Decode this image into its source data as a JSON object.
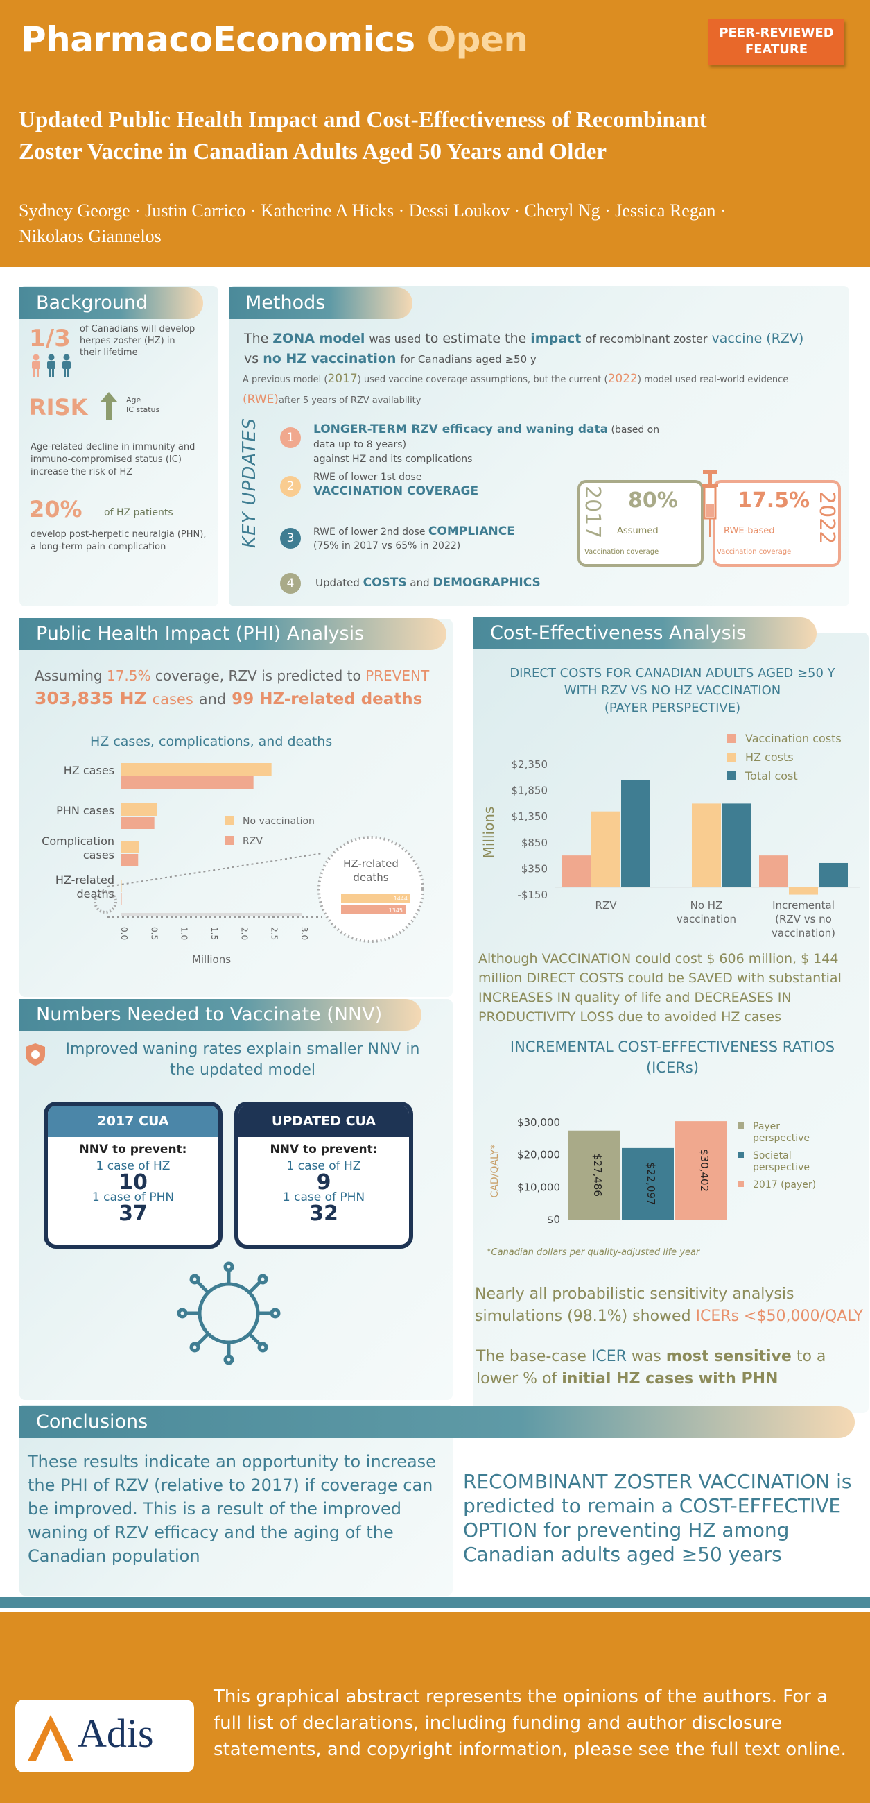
{
  "header": {
    "journal_main": "PharmacoEconomics",
    "journal_accent": "Open",
    "badge_line1": "PEER-REVIEWED",
    "badge_line2": "FEATURE",
    "title_line1": "Updated Public Health Impact and Cost-Effectiveness of Recombinant",
    "title_line2": "Zoster Vaccine in Canadian Adults Aged 50 Years and Older",
    "authors_line1": "Sydney George · Justin Carrico · Katherine A Hicks · Dessi Loukov · Cheryl Ng · Jessica Regan ·",
    "authors_line2": "Nikolaos Giannelos"
  },
  "background": {
    "heading": "Background",
    "fraction": "1/3",
    "fraction_text": "of Canadians will develop herpes zoster (HZ) in their lifetime",
    "risk": "RISK",
    "risk_label1": "Age",
    "risk_label2": "IC status",
    "decline_text": "Age-related decline in immunity and immuno-compromised status (IC) increase the risk of HZ",
    "percent": "20%",
    "percent_label": "of HZ patients",
    "phn_text": "develop post-herpetic neuralgia (PHN), a long-term pain complication"
  },
  "methods": {
    "heading": "Methods",
    "intro_1": "The",
    "intro_zona": "ZONA model",
    "intro_2": "was used",
    "intro_3": "to estimate the",
    "intro_impact": "impact",
    "intro_4": "of recombinant zoster",
    "intro_vaccine": "vaccine (RZV)",
    "intro_vs": "vs",
    "intro_nohz": "no HZ vaccination",
    "intro_5": "for Canadians aged ≥50 y",
    "prev_1": "A previous model (",
    "prev_2017": "2017",
    "prev_2": ") used vaccine coverage assumptions, but the current (",
    "prev_2022": "2022",
    "prev_3": ") model used real-world evidence",
    "prev_rwe": "(RWE)",
    "prev_4": "after 5 years of RZV availability",
    "key_updates": "KEY UPDATES",
    "updates": [
      {
        "num": "1",
        "bold": "LONGER-TERM RZV efficacy and waning data",
        "rest": " (based on data up to 8 years)",
        "line2": "against HZ and its complications"
      },
      {
        "num": "2",
        "pre": "RWE of lower 1st dose",
        "bold": "VACCINATION COVERAGE"
      },
      {
        "num": "3",
        "pre": "RWE of lower 2nd dose ",
        "bold": "COMPLIANCE",
        "line2": "(75% in 2017 vs 65% in 2022)"
      },
      {
        "num": "4",
        "pre": "Updated ",
        "bold": "COSTS",
        "mid": " and ",
        "bold2": "DEMOGRAPHICS"
      }
    ],
    "cov_2017_year": "2017",
    "cov_2017_value": "80%",
    "cov_2017_label": "Assumed",
    "cov_2017_sub": "Vaccination coverage",
    "cov_2022_year": "2022",
    "cov_2022_value": "17.5%",
    "cov_2022_label": "RWE-based",
    "cov_2022_sub": "Vaccination coverage"
  },
  "phi": {
    "heading": "Public Health  Impact (PHI) Analysis",
    "line1_a": "Assuming",
    "line1_b": "17.5%",
    "line1_c": "coverage, RZV is predicted to",
    "line1_d": "PREVENT",
    "line2_a": "303,835 HZ",
    "line2_b": "cases",
    "line2_c": "and",
    "line2_d": "99 HZ-related deaths",
    "chart_title": "HZ cases, complications, and deaths",
    "x_label": "Millions",
    "zoom_label_1": "HZ-related",
    "zoom_label_2": "deaths",
    "zoom_val_1": "1444",
    "zoom_val_2": "1345",
    "legend_no_vacc": "No vaccination",
    "legend_rzv": "RZV"
  },
  "chart_data": [
    {
      "type": "bar",
      "title": "HZ cases, complications, and deaths",
      "xlabel": "Millions",
      "categories": [
        "HZ cases",
        "PHN cases",
        "Complication cases",
        "HZ-related deaths"
      ],
      "series": [
        {
          "name": "No vaccination",
          "values": [
            2.5,
            0.6,
            0.3,
            0.0014
          ]
        },
        {
          "name": "RZV",
          "values": [
            2.2,
            0.55,
            0.28,
            0.0013
          ]
        }
      ],
      "xticks": [
        "0.0",
        "0.5",
        "1.0",
        "1.5",
        "2.0",
        "2.5",
        "3.0"
      ],
      "xlim": [
        0,
        3
      ]
    },
    {
      "type": "bar",
      "title": "DIRECT COSTS FOR CANADIAN ADULTS AGED ≥50 Y WITH RZV VS NO HZ VACCINATION (PAYER PERSPECTIVE)",
      "ylabel": "Millions",
      "categories": [
        "RZV",
        "No HZ vaccination",
        "Incremental (RZV vs no vaccination)"
      ],
      "series": [
        {
          "name": "Vaccination costs",
          "values": [
            606,
            0,
            606
          ]
        },
        {
          "name": "HZ costs",
          "values": [
            1450,
            1600,
            -144
          ]
        },
        {
          "name": "Total cost",
          "values": [
            2050,
            1600,
            462
          ]
        }
      ],
      "yticks": [
        "$2,350",
        "$1,850",
        "$1,350",
        "$850",
        "$350",
        "-$150"
      ],
      "ylim": [
        -150,
        2350
      ]
    },
    {
      "type": "bar",
      "title": "INCREMENTAL COST-EFFECTIVENESS RATIOS (ICERs)",
      "ylabel": "CAD/QALY*",
      "categories": [
        "Payer perspective",
        "Societal perspective",
        "2017 (payer)"
      ],
      "values": [
        27486,
        22097,
        30402
      ],
      "value_labels": [
        "$27,486",
        "$22,097",
        "$30,402"
      ],
      "yticks": [
        "$30,000",
        "$20,000",
        "$10,000",
        "$0"
      ],
      "ylim": [
        0,
        30000
      ]
    }
  ],
  "cea": {
    "heading": "Cost-Effectiveness Analysis",
    "chart_title_1": "DIRECT COSTS FOR CANADIAN ADULTS AGED ≥50 Y",
    "chart_title_2": "WITH RZV VS NO HZ VACCINATION",
    "chart_title_3": "(PAYER PERSPECTIVE)",
    "legend": [
      "Vaccination costs",
      "HZ costs",
      "Total cost"
    ],
    "ylabel": "Millions",
    "cat_1": "RZV",
    "cat_2a": "No HZ",
    "cat_2b": "vaccination",
    "cat_3a": "Incremental",
    "cat_3b": "(RZV vs no",
    "cat_3c": "vaccination)",
    "save_1": "Although VACCINATION could cost $ 606 million, $ 144",
    "save_2": "million DIRECT COSTS could be SAVED with substantial",
    "save_3": "INCREASES IN quality of life and DECREASES IN",
    "save_4": "PRODUCTIVITY LOSS due to avoided HZ cases",
    "icer_title_1": "INCREMENTAL COST-EFFECTIVENESS RATIOS",
    "icer_title_2": "(ICERs)",
    "icer_ylabel": "CAD/QALY*",
    "icer_legend": [
      "Payer perspective",
      "Societal perspective",
      "2017 (payer)"
    ],
    "footnote": "*Canadian dollars per quality-adjusted life year",
    "psa_1": "Nearly all probabilistic sensitivity analysis",
    "psa_2": "simulations (98.1%) showed",
    "psa_3": "ICERs <$50,000/QALY",
    "sens_1": "The base-case",
    "sens_2": "ICER",
    "sens_3": "was",
    "sens_4": "most sensitive",
    "sens_5": "to a",
    "sens_6": "lower % of",
    "sens_7": "initial HZ cases with PHN"
  },
  "nnv": {
    "heading": "Numbers Needed to Vaccinate (NNV)",
    "intro_1": "Improved waning rates explain smaller NNV in",
    "intro_2": "the updated model",
    "box1_head": "2017 CUA",
    "box2_head": "UPDATED CUA",
    "prevent": "NNV to prevent:",
    "case_hz": "1 case of HZ",
    "case_phn": "1 case of PHN",
    "b1_hz": "10",
    "b1_phn": "37",
    "b2_hz": "9",
    "b2_phn": "32"
  },
  "conclusions": {
    "heading": "Conclusions",
    "left": "These results indicate an opportunity to increase the PHI of RZV (relative to 2017) if coverage can be improved. This is a result of the improved waning of RZV efficacy and the aging of the Canadian population",
    "right": "RECOMBINANT ZOSTER VACCINATION is predicted to remain a COST-EFFECTIVE OPTION for preventing HZ among Canadian adults aged ≥50 years"
  },
  "footer": {
    "logo": "Adis",
    "text": "This graphical abstract represents the opinions of the authors. For a full list of declarations, including funding and author disclosure statements, and copyright information, please see the full text online."
  },
  "colors": {
    "header_orange": "#dc8d21",
    "teal": "#4b8a9a",
    "salmon": "#f0a88e",
    "peach": "#f9cc90",
    "dark_teal": "#3f7d92",
    "olive": "#a9aa88"
  }
}
